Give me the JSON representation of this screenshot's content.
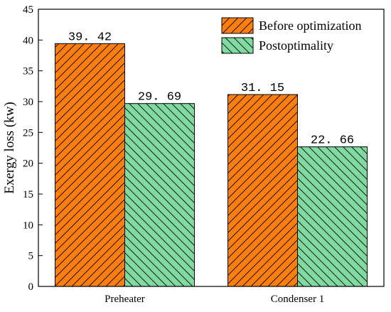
{
  "chart_data": {
    "type": "bar",
    "categories": [
      "Preheater",
      "Condenser 1"
    ],
    "series": [
      {
        "name": "Before optimization",
        "values": [
          39.42,
          31.15
        ],
        "color": "#FF7F0E",
        "hatch": "diagonal-up"
      },
      {
        "name": "Postoptimality",
        "values": [
          29.69,
          22.66
        ],
        "color": "#7FD9A0",
        "hatch": "diagonal-down"
      }
    ],
    "data_labels": [
      [
        "39. 42",
        "31. 15"
      ],
      [
        "29. 69",
        "22. 66"
      ]
    ],
    "ylabel": "Exergy loss (kw)",
    "xlabel": "",
    "ylim": [
      0,
      45
    ],
    "yticks": [
      0,
      5,
      10,
      15,
      20,
      25,
      30,
      35,
      40,
      45
    ],
    "grid": false,
    "legend_position": "top-right"
  }
}
